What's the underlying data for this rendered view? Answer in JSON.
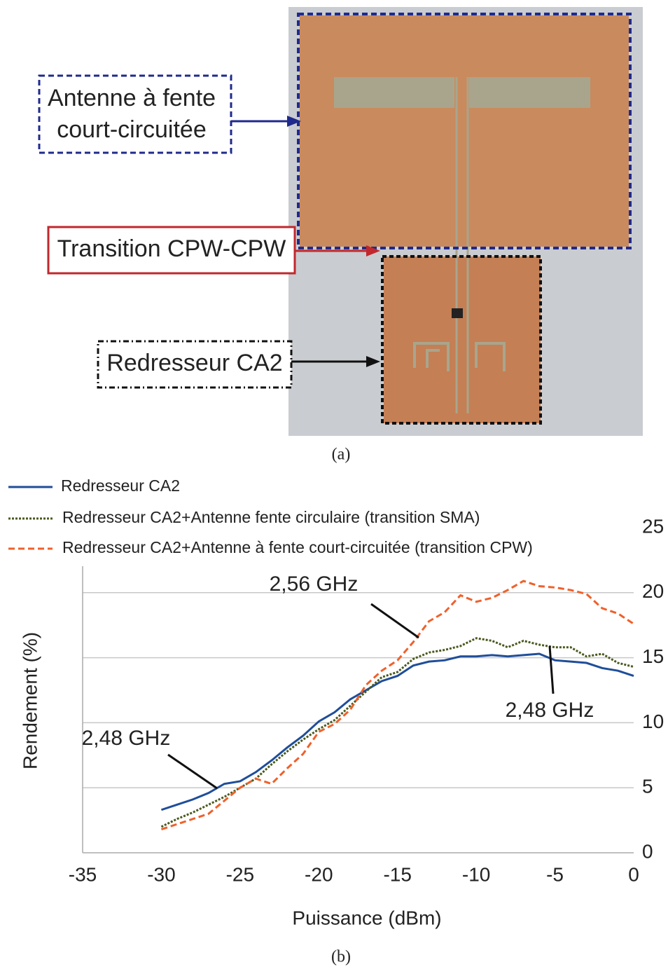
{
  "photo": {
    "labels": [
      [
        "Antenne à fente",
        "court-circuitée"
      ],
      [
        "Transition CPW-CPW"
      ],
      [
        "Redresseur CA2"
      ]
    ],
    "caption": "(a)"
  },
  "chart_data": {
    "type": "line",
    "caption": "(b)",
    "x_label": "Puissance (dBm)",
    "y_label": "Rendement (%)",
    "xlim": [
      -35,
      0
    ],
    "xticks": [
      -35,
      -30,
      -25,
      -20,
      -15,
      -10,
      -5,
      0
    ],
    "ylim": [
      0,
      25
    ],
    "yticks": [
      0,
      5,
      10,
      15,
      20,
      25
    ],
    "y_axis_side": "right",
    "grid": true,
    "legend": "upper left",
    "x": [
      -30,
      -29,
      -28,
      -27,
      -26,
      -25,
      -24,
      -23,
      -22,
      -21,
      -20,
      -19,
      -18,
      -17,
      -16,
      -15,
      -14,
      -13,
      -12,
      -11,
      -10,
      -9,
      -8,
      -7,
      -6,
      -5,
      -4,
      -3,
      -2,
      -1,
      0
    ],
    "series": [
      {
        "name": "Redresseur CA2",
        "color": "#1f4e99",
        "dash": "solid",
        "values": [
          3.3,
          3.7,
          4.1,
          4.6,
          5.3,
          5.5,
          6.2,
          7.1,
          8.1,
          9.0,
          10.1,
          10.8,
          11.8,
          12.5,
          13.2,
          13.6,
          14.4,
          14.7,
          14.8,
          15.1,
          15.1,
          15.2,
          15.1,
          15.2,
          15.3,
          14.8,
          14.7,
          14.6,
          14.2,
          14.0,
          13.6
        ]
      },
      {
        "name": "Redresseur CA2+Antenne fente circulaire (transition SMA)",
        "color": "#4a5a1e",
        "dash": "dotted",
        "values": [
          2.0,
          2.6,
          3.1,
          3.7,
          4.3,
          5.0,
          5.7,
          6.8,
          7.8,
          8.7,
          9.5,
          10.2,
          11.3,
          12.4,
          13.5,
          13.9,
          14.9,
          15.4,
          15.6,
          15.9,
          16.5,
          16.3,
          15.8,
          16.3,
          16.0,
          15.8,
          15.8,
          15.1,
          15.3,
          14.6,
          14.3
        ]
      },
      {
        "name": "Redresseur CA2+Antenne à fente court-circuitée (transition CPW)",
        "color": "#f0602a",
        "dash": "dashed",
        "values": [
          1.8,
          2.2,
          2.6,
          3.0,
          4.0,
          5.0,
          5.7,
          5.3,
          6.5,
          7.6,
          9.3,
          9.9,
          11.0,
          12.9,
          14.0,
          14.8,
          16.2,
          17.8,
          18.5,
          19.8,
          19.3,
          19.6,
          20.2,
          20.9,
          20.5,
          20.4,
          20.2,
          19.9,
          18.8,
          18.4,
          17.6
        ]
      }
    ],
    "annotations": [
      "2,56 GHz",
      "2,48 GHz",
      "2,48 GHz"
    ]
  }
}
